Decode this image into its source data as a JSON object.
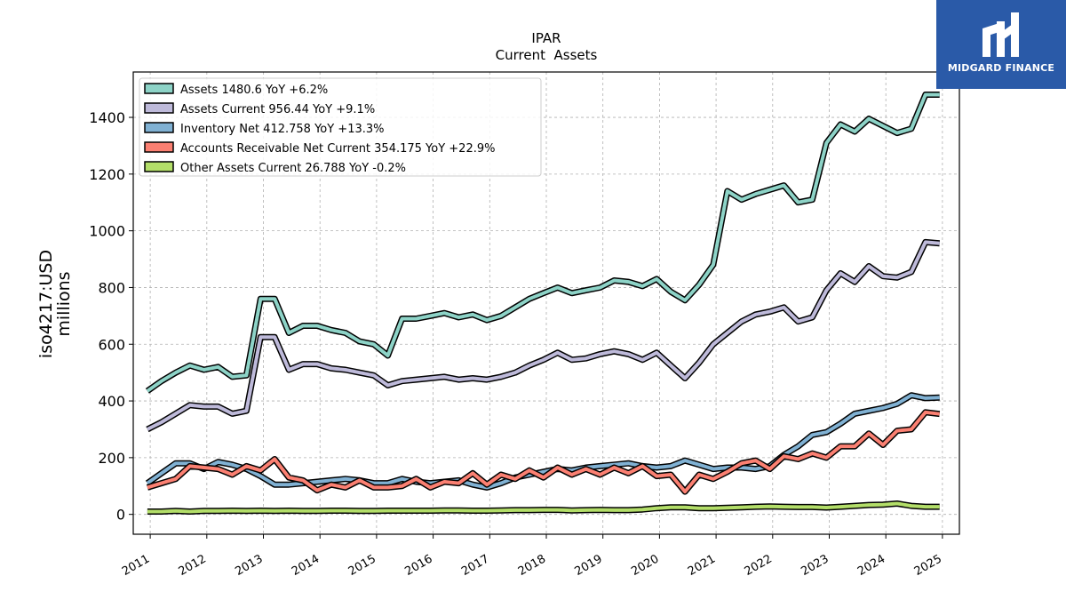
{
  "logo": {
    "text": "MIDGARD FINANCE"
  },
  "chart_data": {
    "type": "line",
    "title": "IPAR",
    "subtitle": "Current  Assets",
    "ylabel": "iso4217:USD",
    "ylabel2": "millions",
    "xlim": [
      2010.7,
      2025.3
    ],
    "ylim": [
      -70,
      1560
    ],
    "yticks": [
      0,
      200,
      400,
      600,
      800,
      1000,
      1200,
      1400
    ],
    "xticks": [
      2011,
      2012,
      2013,
      2014,
      2015,
      2016,
      2017,
      2018,
      2019,
      2020,
      2021,
      2022,
      2023,
      2024,
      2025
    ],
    "xtick_labels": [
      "2011",
      "2012",
      "2013",
      "2014",
      "2015",
      "2016",
      "2017",
      "2018",
      "2019",
      "2020",
      "2021",
      "2022",
      "2023",
      "2024",
      "2025"
    ],
    "grid": true,
    "legend_position": "top-left",
    "x": [
      2010.95,
      2011.2,
      2011.45,
      2011.7,
      2011.95,
      2012.2,
      2012.45,
      2012.7,
      2012.95,
      2013.2,
      2013.45,
      2013.7,
      2013.95,
      2014.2,
      2014.45,
      2014.7,
      2014.95,
      2015.2,
      2015.45,
      2015.7,
      2015.95,
      2016.2,
      2016.45,
      2016.7,
      2016.95,
      2017.2,
      2017.45,
      2017.7,
      2017.95,
      2018.2,
      2018.45,
      2018.7,
      2018.95,
      2019.2,
      2019.45,
      2019.7,
      2019.95,
      2020.2,
      2020.45,
      2020.7,
      2020.95,
      2021.2,
      2021.45,
      2021.7,
      2021.95,
      2022.2,
      2022.45,
      2022.7,
      2022.95,
      2023.2,
      2023.45,
      2023.7,
      2023.95,
      2024.2,
      2024.45,
      2024.7,
      2024.95
    ],
    "series": [
      {
        "name": "Assets  1480.6 YoY +6.2%",
        "color": "#8dd3c7",
        "values": [
          435,
          470,
          500,
          525,
          510,
          520,
          485,
          490,
          760,
          760,
          640,
          665,
          665,
          650,
          640,
          610,
          600,
          560,
          690,
          690,
          700,
          710,
          695,
          705,
          685,
          700,
          730,
          760,
          780,
          800,
          780,
          790,
          800,
          825,
          820,
          805,
          830,
          785,
          755,
          810,
          880,
          1140,
          1110,
          1130,
          1145,
          1160,
          1100,
          1110,
          1310,
          1375,
          1350,
          1395,
          1370,
          1345,
          1360,
          1480,
          1480
        ]
      },
      {
        "name": "Assets Current  956.44 YoY +9.1%",
        "color": "#bebada",
        "values": [
          300,
          325,
          355,
          385,
          380,
          380,
          355,
          365,
          625,
          625,
          510,
          530,
          530,
          515,
          510,
          500,
          490,
          455,
          470,
          475,
          480,
          485,
          475,
          480,
          475,
          485,
          500,
          525,
          545,
          570,
          545,
          550,
          565,
          575,
          565,
          545,
          570,
          525,
          480,
          535,
          600,
          640,
          680,
          705,
          715,
          730,
          680,
          695,
          790,
          850,
          820,
          875,
          840,
          835,
          855,
          960,
          956
        ]
      },
      {
        "name": "Inventory Net  412.758 YoY +13.3%",
        "color": "#80b1d3",
        "values": [
          110,
          145,
          180,
          180,
          160,
          185,
          175,
          160,
          135,
          105,
          105,
          110,
          115,
          120,
          125,
          120,
          110,
          110,
          125,
          115,
          110,
          115,
          120,
          105,
          95,
          110,
          130,
          140,
          150,
          160,
          155,
          165,
          170,
          175,
          180,
          170,
          165,
          170,
          190,
          175,
          160,
          165,
          165,
          160,
          170,
          210,
          240,
          280,
          290,
          320,
          355,
          365,
          375,
          390,
          420,
          410,
          412
        ]
      },
      {
        "name": "Accounts Receivable Net Current  354.175 YoY +22.9%",
        "color": "#fb8072",
        "values": [
          95,
          110,
          125,
          170,
          165,
          160,
          140,
          170,
          155,
          195,
          130,
          120,
          85,
          105,
          95,
          120,
          95,
          95,
          100,
          125,
          95,
          115,
          110,
          145,
          105,
          140,
          125,
          155,
          130,
          165,
          140,
          160,
          140,
          165,
          145,
          170,
          135,
          140,
          80,
          140,
          125,
          150,
          180,
          190,
          160,
          205,
          195,
          215,
          200,
          240,
          240,
          285,
          245,
          295,
          300,
          360,
          354
        ]
      },
      {
        "name": "Other Assets Current  26.788 YoY -0.2%",
        "color": "#b3de69",
        "values": [
          10,
          10,
          12,
          10,
          12,
          12,
          13,
          12,
          13,
          12,
          13,
          12,
          12,
          13,
          13,
          12,
          12,
          13,
          13,
          13,
          13,
          14,
          14,
          13,
          13,
          14,
          15,
          15,
          16,
          16,
          14,
          15,
          16,
          15,
          15,
          17,
          22,
          25,
          25,
          22,
          22,
          23,
          25,
          27,
          28,
          27,
          26,
          26,
          24,
          27,
          30,
          33,
          34,
          38,
          30,
          27,
          27
        ]
      }
    ]
  }
}
